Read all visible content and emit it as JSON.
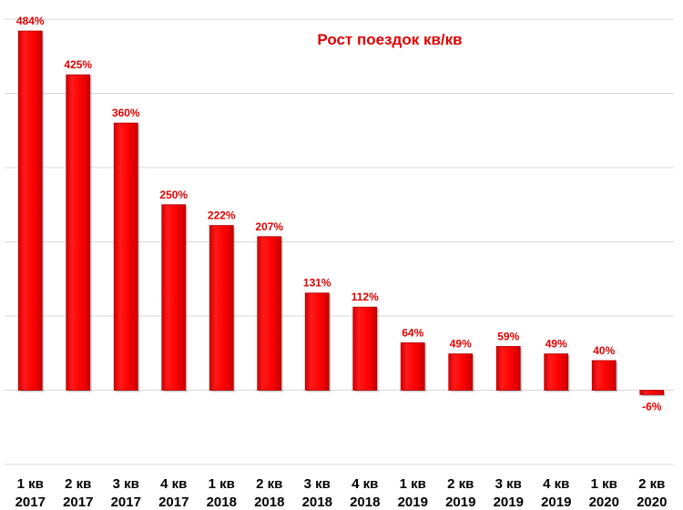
{
  "chart_data": {
    "type": "bar",
    "title": "Рост поездок кв/кв",
    "categories": [
      [
        "1 кв",
        "2017"
      ],
      [
        "2 кв",
        "2017"
      ],
      [
        "3 кв",
        "2017"
      ],
      [
        "4 кв",
        "2017"
      ],
      [
        "1 кв",
        "2018"
      ],
      [
        "2 кв",
        "2018"
      ],
      [
        "3 кв",
        "2018"
      ],
      [
        "4 кв",
        "2018"
      ],
      [
        "1 кв",
        "2019"
      ],
      [
        "2 кв",
        "2019"
      ],
      [
        "3 кв",
        "2019"
      ],
      [
        "4 кв",
        "2019"
      ],
      [
        "1 кв",
        "2020"
      ],
      [
        "2 кв",
        "2020"
      ]
    ],
    "values": [
      484,
      425,
      360,
      250,
      222,
      207,
      131,
      112,
      64,
      49,
      59,
      49,
      40,
      -6
    ],
    "data_labels": [
      "484%",
      "425%",
      "360%",
      "250%",
      "222%",
      "207%",
      "131%",
      "112%",
      "64%",
      "49%",
      "59%",
      "49%",
      "40%",
      "-6%"
    ],
    "unit": "%",
    "ylim": [
      -100,
      500
    ],
    "grid": true,
    "legend": "none",
    "colors": {
      "bar": "#ff0000",
      "bar_edge": "#b00000",
      "label": "#e00000",
      "title": "#e00000",
      "grid": "#d9d9d9"
    }
  }
}
